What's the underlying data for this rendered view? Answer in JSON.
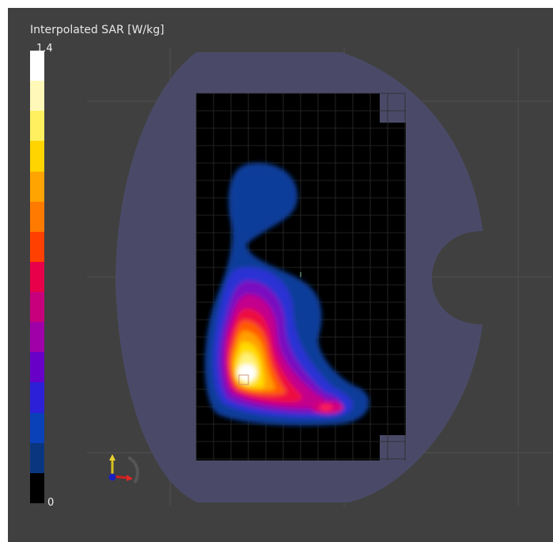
{
  "legend": {
    "title": "Interpolated SAR [W/kg]",
    "max_label": "1.4",
    "min_label": "0",
    "colors": [
      "#ffffff",
      "#fff8b8",
      "#fff060",
      "#ffd400",
      "#ffa400",
      "#ff7a00",
      "#ff4000",
      "#e8004a",
      "#c8007c",
      "#a000a8",
      "#6800c8",
      "#2c20d8",
      "#0a40b8",
      "#0a3680",
      "#000000"
    ]
  },
  "colors": {
    "background": "#404040",
    "phantom": "#4a4a66",
    "grid_region": "#000000",
    "grid_line": "#5a5a5a"
  },
  "icons": {
    "axes_triad": "xyz-axes-triad-icon"
  }
}
